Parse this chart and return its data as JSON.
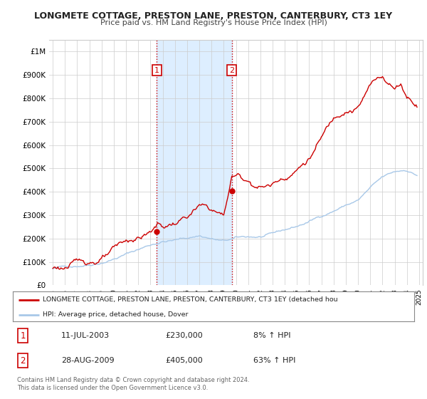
{
  "title": "LONGMETE COTTAGE, PRESTON LANE, PRESTON, CANTERBURY, CT3 1EY",
  "subtitle": "Price paid vs. HM Land Registry's House Price Index (HPI)",
  "ylim": [
    0,
    1050000
  ],
  "yticks": [
    0,
    100000,
    200000,
    300000,
    400000,
    500000,
    600000,
    700000,
    800000,
    900000,
    1000000
  ],
  "ytick_labels": [
    "£0",
    "£100K",
    "£200K",
    "£300K",
    "£400K",
    "£500K",
    "£600K",
    "£700K",
    "£800K",
    "£900K",
    "£1M"
  ],
  "sale1_x": 2003.53,
  "sale1_y": 230000,
  "sale1_label": "1",
  "sale2_x": 2009.66,
  "sale2_y": 405000,
  "sale2_label": "2",
  "hpi_color": "#a8c8e8",
  "price_color": "#cc0000",
  "vline_color": "#cc0000",
  "vline_style": ":",
  "shade_color": "#ddeeff",
  "legend_line1": "LONGMETE COTTAGE, PRESTON LANE, PRESTON, CANTERBURY, CT3 1EY (detached hou",
  "legend_line2": "HPI: Average price, detached house, Dover",
  "table_row1": [
    "1",
    "11-JUL-2003",
    "£230,000",
    "8% ↑ HPI"
  ],
  "table_row2": [
    "2",
    "28-AUG-2009",
    "£405,000",
    "63% ↑ HPI"
  ],
  "footnote": "Contains HM Land Registry data © Crown copyright and database right 2024.\nThis data is licensed under the Open Government Licence v3.0.",
  "bg_color": "#ffffff",
  "grid_color": "#cccccc",
  "xlim_left": 1994.7,
  "xlim_right": 2025.3
}
